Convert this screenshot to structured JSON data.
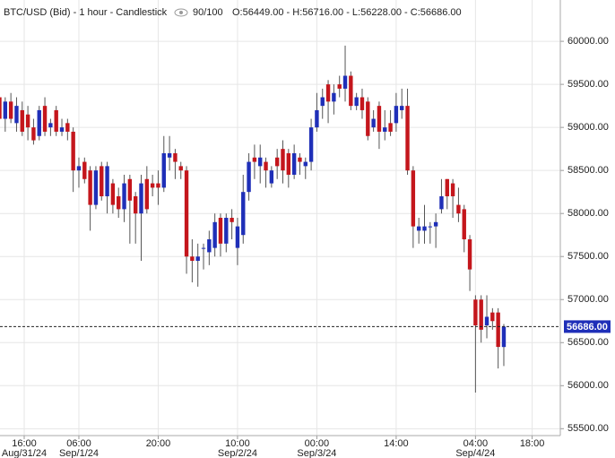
{
  "chart_data": {
    "type": "candlestick",
    "title": "BTC/USD (Bid) - 1 hour - Candlestick",
    "count_label": "90/100",
    "ohlc_label": "O:56449.00 - H:56716.00 - L:56228.00 - C:56686.00",
    "last_price_label": "56686.00",
    "up_color": "#1f2fb8",
    "down_color": "#c4161c",
    "open": [
      59350,
      59100,
      59300,
      59050,
      59200,
      59150,
      59000,
      58900,
      59250,
      59000,
      59200,
      58950,
      59050,
      58950,
      58500,
      58600,
      58500,
      58100,
      58550,
      58200,
      58350,
      58200,
      58050,
      58400,
      58200,
      58000,
      58400,
      58350,
      58350,
      58300,
      58650,
      58700,
      58550,
      58500,
      57500,
      57450,
      57600,
      57550,
      57600,
      57950,
      57650,
      57950,
      57600,
      57750,
      58250,
      58650,
      58550,
      58600,
      58350,
      58650,
      58750,
      58700,
      58450,
      58650,
      58550,
      58600,
      59000,
      59250,
      59500,
      59300,
      59500,
      59450,
      59600,
      59250,
      59350,
      59300,
      59000,
      59250,
      58950,
      59050,
      59050,
      59200,
      59250,
      58500,
      57800,
      57800,
      57850,
      57850,
      58050,
      58400,
      58350,
      58100,
      58050,
      57700,
      57000,
      57000,
      56700,
      56850,
      56850,
      56449
    ],
    "high": [
      59400,
      59350,
      59400,
      59350,
      59300,
      59250,
      59100,
      59250,
      59350,
      59100,
      59250,
      59100,
      59100,
      59000,
      58650,
      58650,
      58550,
      58550,
      58600,
      58600,
      58400,
      58300,
      58450,
      58450,
      58250,
      58450,
      58550,
      58450,
      58500,
      58900,
      58900,
      58750,
      58600,
      58550,
      57700,
      57650,
      57650,
      57800,
      58000,
      58000,
      58000,
      58050,
      57950,
      58450,
      58700,
      58800,
      58800,
      58650,
      58550,
      58750,
      58850,
      58750,
      58800,
      58700,
      58650,
      59100,
      59400,
      59450,
      59550,
      59500,
      59600,
      59950,
      59650,
      59400,
      59450,
      59350,
      59200,
      59300,
      59200,
      59200,
      59400,
      59450,
      59450,
      58550,
      57950,
      58100,
      57900,
      58000,
      58400,
      58400,
      58400,
      58300,
      58100,
      57750,
      57050,
      57050,
      57050,
      56900,
      56900,
      56716
    ],
    "low": [
      59000,
      58950,
      59050,
      58950,
      58900,
      58850,
      58800,
      58850,
      58900,
      58900,
      58900,
      58900,
      58850,
      58250,
      58300,
      58350,
      57800,
      58050,
      58150,
      58000,
      58000,
      57950,
      57900,
      57650,
      57650,
      57450,
      58000,
      58200,
      58100,
      58250,
      58500,
      58400,
      58400,
      57300,
      57200,
      57150,
      57350,
      57400,
      57500,
      57500,
      57550,
      57700,
      57400,
      57650,
      58150,
      58400,
      58350,
      58300,
      58300,
      58400,
      58350,
      58300,
      58400,
      58450,
      58400,
      58500,
      58950,
      59100,
      59050,
      59150,
      59350,
      59300,
      59200,
      59200,
      59100,
      58850,
      58950,
      58750,
      58850,
      58900,
      58950,
      59100,
      58450,
      57600,
      57650,
      57650,
      57650,
      57600,
      58000,
      58050,
      57950,
      57900,
      57550,
      57100,
      55920,
      56500,
      56550,
      56650,
      56200,
      56228
    ],
    "close": [
      59100,
      59300,
      59100,
      59250,
      58950,
      59000,
      58850,
      59200,
      58950,
      59050,
      58950,
      59000,
      58950,
      58500,
      58550,
      58400,
      58100,
      58500,
      58200,
      58550,
      58100,
      58050,
      58350,
      58150,
      58000,
      58350,
      58050,
      58300,
      58300,
      58700,
      58700,
      58600,
      58500,
      57500,
      57450,
      57500,
      57600,
      57700,
      57900,
      57650,
      57950,
      57900,
      57850,
      58250,
      58600,
      58600,
      58650,
      58500,
      58500,
      58550,
      58500,
      58450,
      58700,
      58600,
      58600,
      59000,
      59200,
      59350,
      59300,
      59400,
      59450,
      59600,
      59250,
      59350,
      59200,
      58900,
      59100,
      58950,
      59000,
      58950,
      59250,
      59250,
      58500,
      57850,
      57850,
      57850,
      57850,
      57900,
      58200,
      58200,
      58200,
      58000,
      57700,
      57350,
      56700,
      56650,
      56800,
      56750,
      56450,
      56686
    ],
    "ylim": [
      55420,
      60480
    ],
    "yticks": [
      {
        "value": 55500,
        "label": "55500.00"
      },
      {
        "value": 56000,
        "label": "56000.00"
      },
      {
        "value": 56500,
        "label": "56500.00"
      },
      {
        "value": 57000,
        "label": "57000.00"
      },
      {
        "value": 57500,
        "label": "57500.00"
      },
      {
        "value": 58000,
        "label": "58000.00"
      },
      {
        "value": 58500,
        "label": "58500.00"
      },
      {
        "value": 59000,
        "label": "59000.00"
      },
      {
        "value": 59500,
        "label": "59500.00"
      },
      {
        "value": 60000,
        "label": "60000.00"
      }
    ],
    "xticks": [
      {
        "value": 4.35,
        "label": "16:00"
      },
      {
        "value": 14,
        "label": "06:00"
      },
      {
        "value": 28,
        "label": "20:00"
      },
      {
        "value": 42,
        "label": "10:00"
      },
      {
        "value": 56,
        "label": "00:00"
      },
      {
        "value": 70,
        "label": "14:00"
      },
      {
        "value": 84,
        "label": "04:00"
      },
      {
        "value": 94,
        "label": "18:00"
      }
    ],
    "xtick_dates": [
      "Aug/31/24",
      "Sep/1/24",
      null,
      "Sep/2/24",
      "Sep/3/24",
      null,
      "Sep/4/24",
      null
    ],
    "grid": true
  }
}
